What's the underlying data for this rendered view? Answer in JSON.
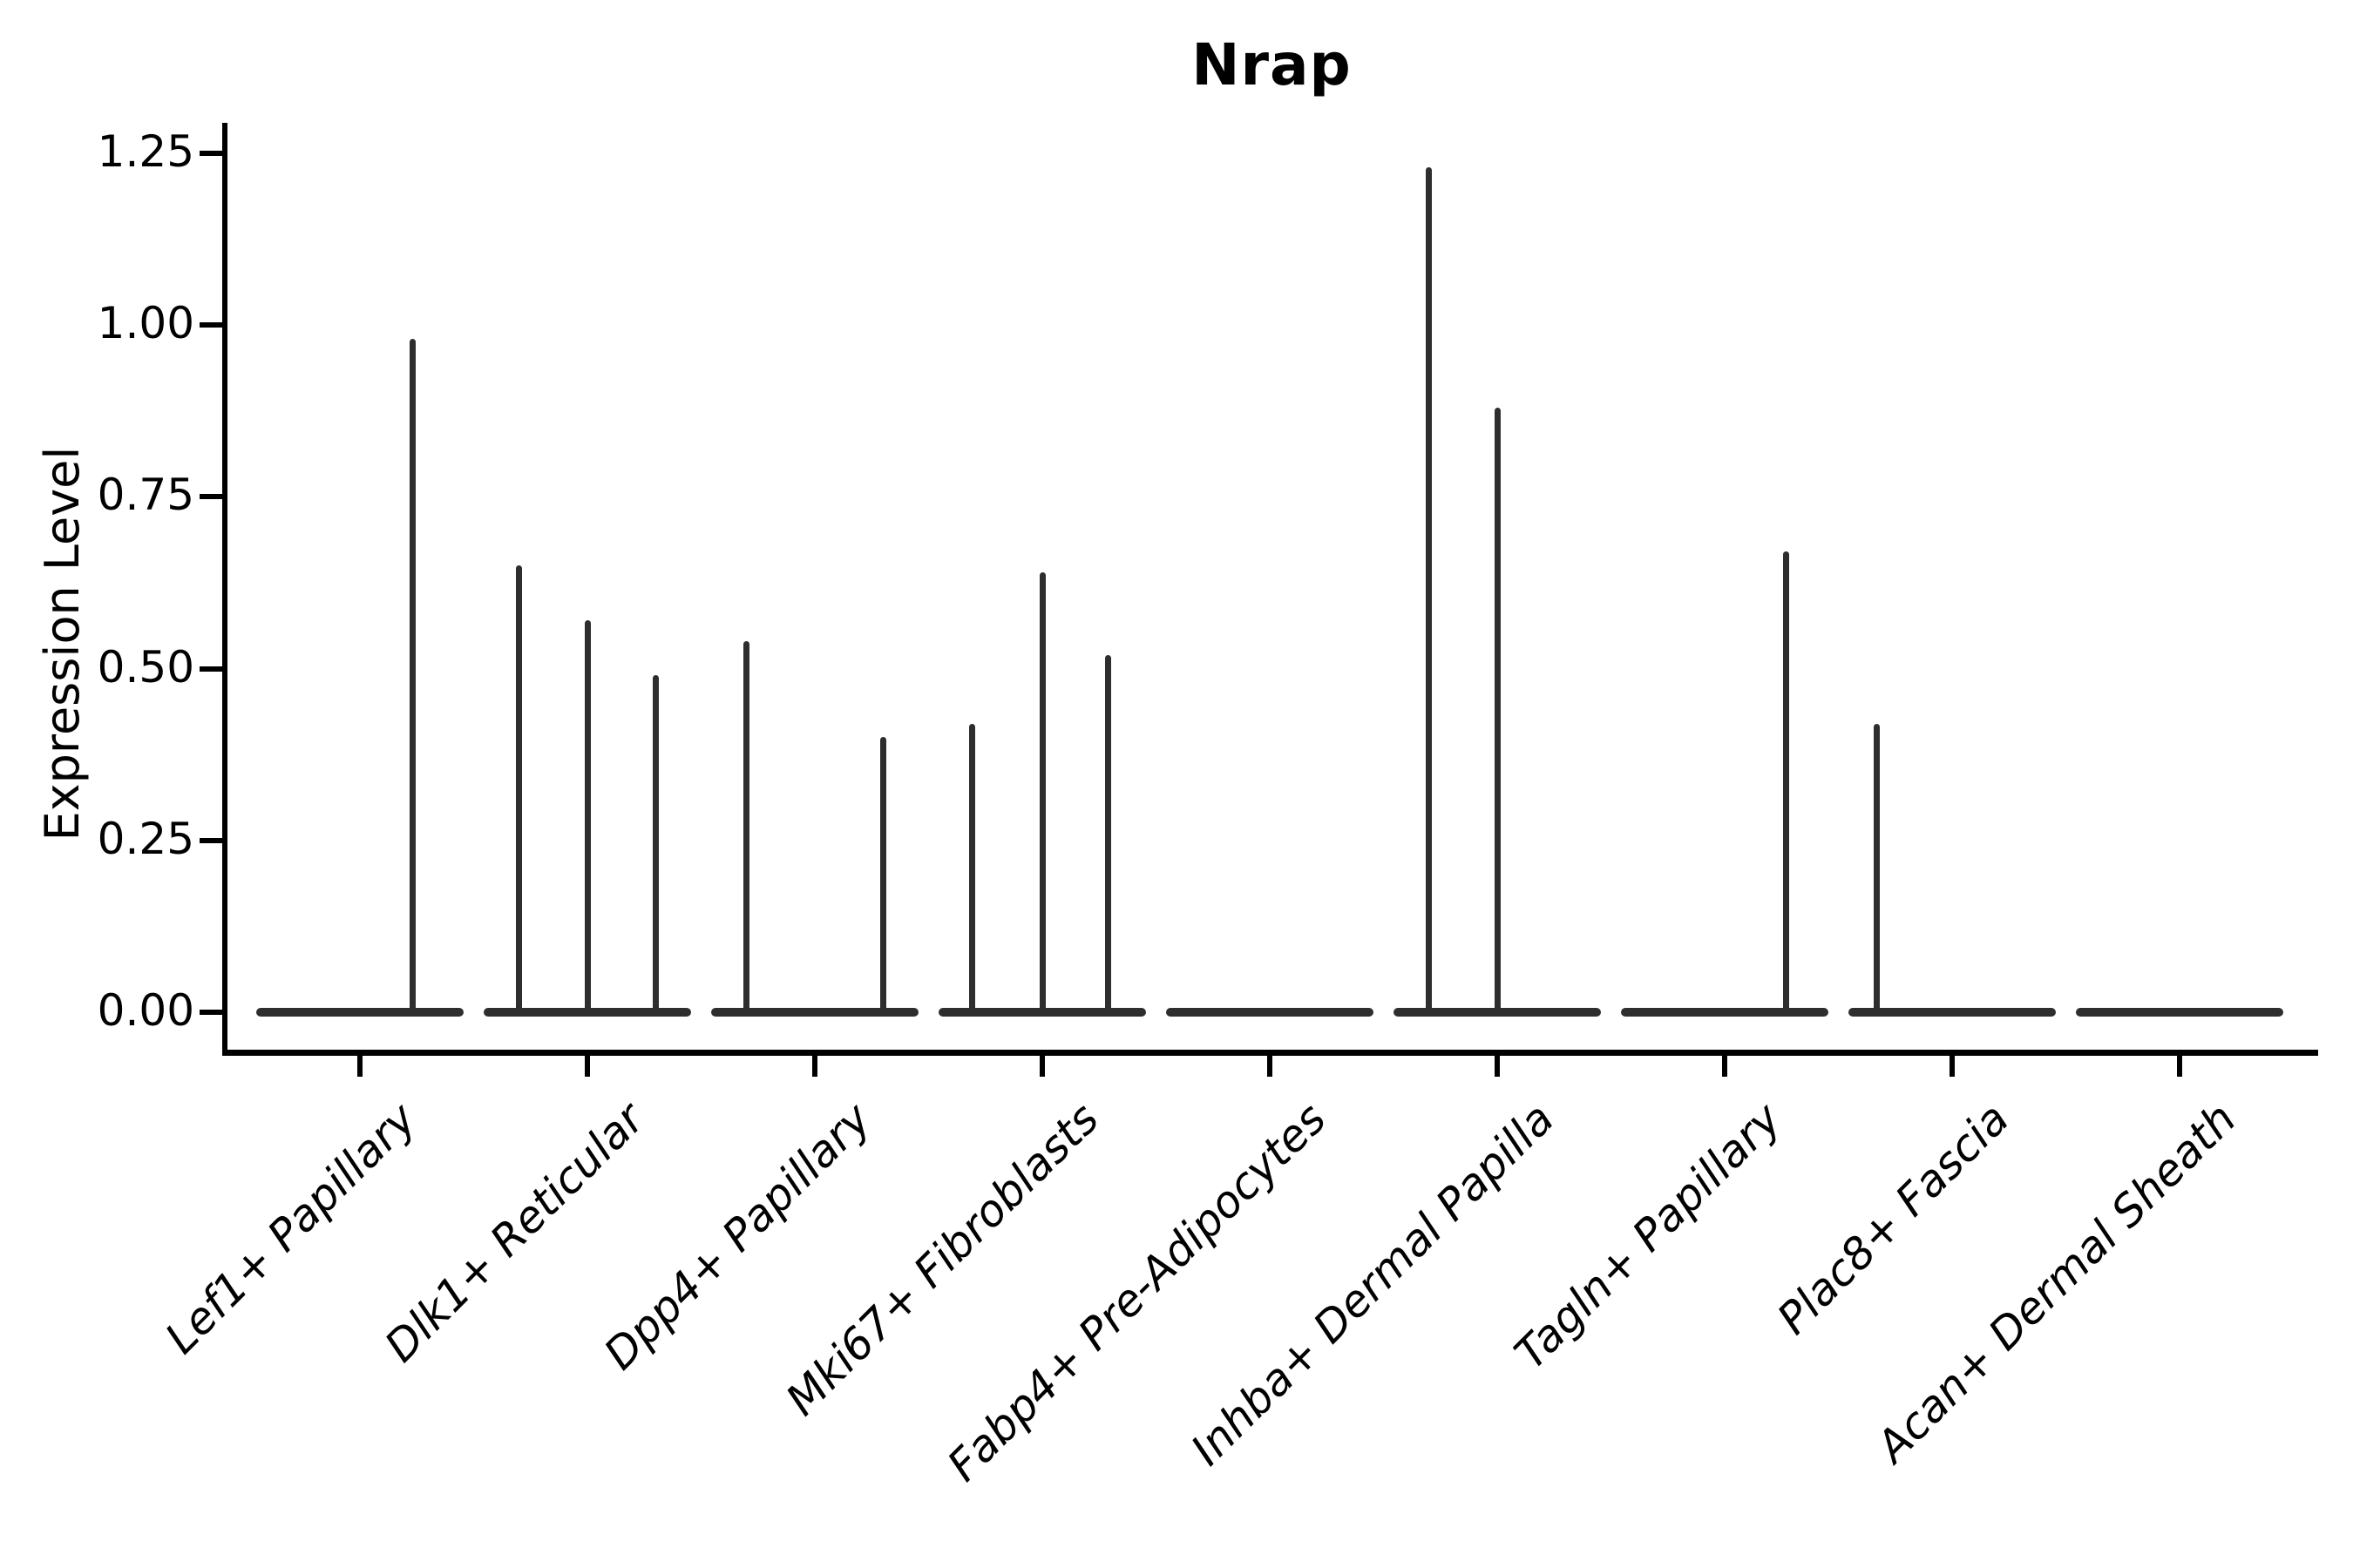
{
  "figure": {
    "background": "#ffffff"
  },
  "chart_data": {
    "type": "violin",
    "title": "Nrap",
    "xlabel": "",
    "ylabel": "Expression Level",
    "grid": false,
    "legend": null,
    "line_color": "#2e2e2e",
    "axis_color": "#000000",
    "text_color": "#000000",
    "ylim": [
      -0.06,
      1.3
    ],
    "ytick_labels": [
      "0.00",
      "0.25",
      "0.50",
      "0.75",
      "1.00",
      "1.25"
    ],
    "ytick_values": [
      0.0,
      0.25,
      0.5,
      0.75,
      1.0,
      1.25
    ],
    "categories": [
      "Lef1+ Papillary",
      "Dlk1+ Reticular",
      "Dpp4+ Papillary",
      "Mki67+ Fibroblasts",
      "Fabp4+ Pre-Adipocytes",
      "Inhba+ Dermal Papilla",
      "Tagln+ Papillary",
      "Plac8+ Fascia",
      "Acan+ Dermal Sheath"
    ],
    "baseline_value": 0.0,
    "violin_width_frac": 0.91,
    "violins": [
      {
        "category": "Lef1+ Papillary",
        "spikes": [
          {
            "offset": 0.23,
            "peak": 0.98
          }
        ]
      },
      {
        "category": "Dlk1+ Reticular",
        "spikes": [
          {
            "offset": -0.3,
            "peak": 0.65
          },
          {
            "offset": 0.0,
            "peak": 0.57
          },
          {
            "offset": 0.3,
            "peak": 0.49
          }
        ]
      },
      {
        "category": "Dpp4+ Papillary",
        "spikes": [
          {
            "offset": -0.3,
            "peak": 0.54
          },
          {
            "offset": 0.3,
            "peak": 0.4
          }
        ]
      },
      {
        "category": "Mki67+ Fibroblasts",
        "spikes": [
          {
            "offset": -0.31,
            "peak": 0.42
          },
          {
            "offset": 0.0,
            "peak": 0.64
          },
          {
            "offset": 0.29,
            "peak": 0.52
          }
        ]
      },
      {
        "category": "Fabp4+ Pre-Adipocytes",
        "spikes": []
      },
      {
        "category": "Inhba+ Dermal Papilla",
        "spikes": [
          {
            "offset": -0.3,
            "peak": 1.23
          },
          {
            "offset": 0.0,
            "peak": 0.88
          }
        ]
      },
      {
        "category": "Tagln+ Papillary",
        "spikes": [
          {
            "offset": 0.27,
            "peak": 0.67
          }
        ]
      },
      {
        "category": "Plac8+ Fascia",
        "spikes": [
          {
            "offset": -0.33,
            "peak": 0.42
          }
        ]
      },
      {
        "category": "Acan+ Dermal Sheath",
        "spikes": []
      }
    ]
  }
}
